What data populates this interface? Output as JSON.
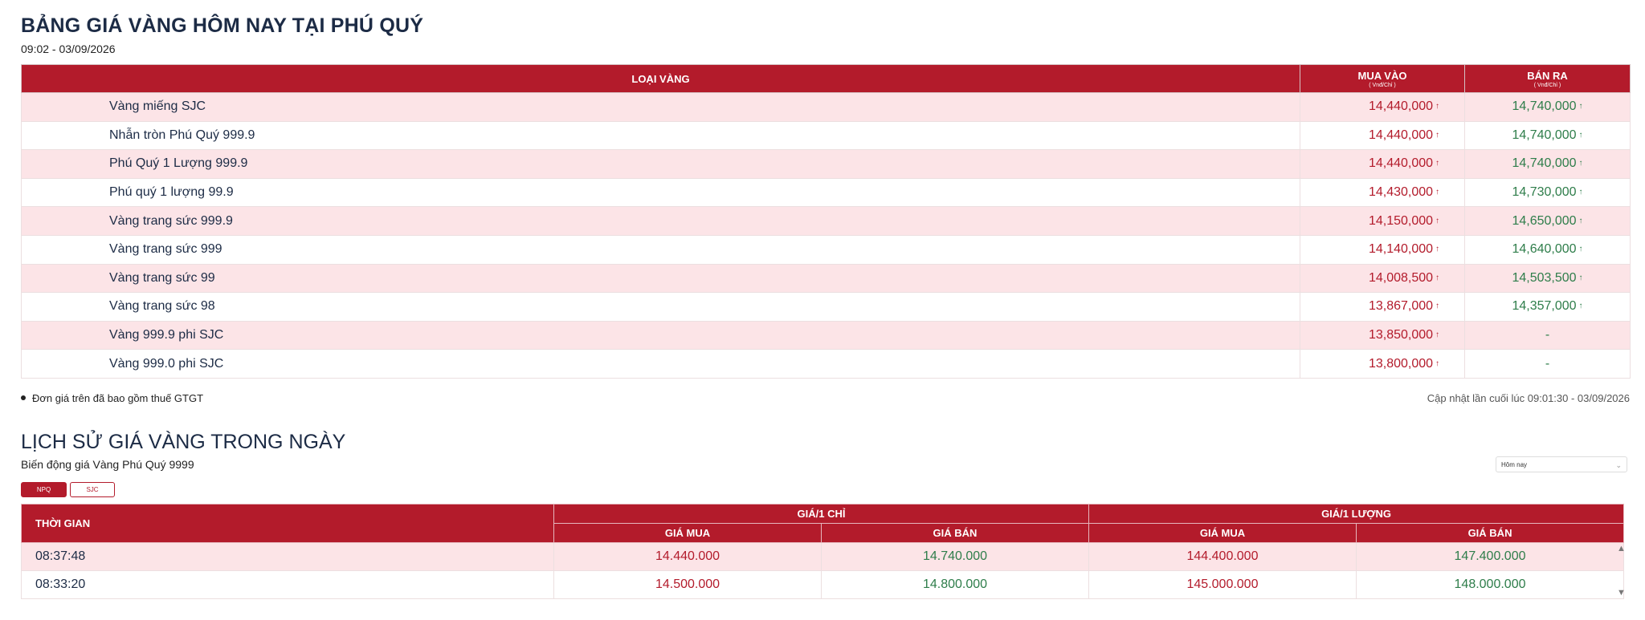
{
  "header": {
    "title": "BẢNG GIÁ VÀNG HÔM NAY TẠI PHÚ QUÝ",
    "datetime": "09:02 - 03/09/2026"
  },
  "price_table": {
    "col_type": "LOẠI VÀNG",
    "col_buy": "MUA VÀO",
    "col_buy_unit": "( Vnđ/Chỉ )",
    "col_sell": "BÁN RA",
    "col_sell_unit": "( Vnđ/Chỉ )",
    "up_arrow": "↑",
    "rows": [
      {
        "name": "Vàng miếng SJC",
        "buy": "14,440,000",
        "sell": "14,740,000"
      },
      {
        "name": "Nhẫn tròn Phú Quý 999.9",
        "buy": "14,440,000",
        "sell": "14,740,000"
      },
      {
        "name": "Phú Quý 1 Lượng 999.9",
        "buy": "14,440,000",
        "sell": "14,740,000"
      },
      {
        "name": "Phú quý 1 lượng 99.9",
        "buy": "14,430,000",
        "sell": "14,730,000"
      },
      {
        "name": "Vàng trang sức 999.9",
        "buy": "14,150,000",
        "sell": "14,650,000"
      },
      {
        "name": "Vàng trang sức 999",
        "buy": "14,140,000",
        "sell": "14,640,000"
      },
      {
        "name": "Vàng trang sức 99",
        "buy": "14,008,500",
        "sell": "14,503,500"
      },
      {
        "name": "Vàng trang sức 98",
        "buy": "13,867,000",
        "sell": "14,357,000"
      },
      {
        "name": "Vàng 999.9 phi SJC",
        "buy": "13,850,000",
        "sell": "-"
      },
      {
        "name": "Vàng 999.0 phi SJC",
        "buy": "13,800,000",
        "sell": "-"
      }
    ]
  },
  "notes": {
    "vat": "Đơn giá trên đã bao gồm thuế GTGT",
    "updated": "Cập nhật lần cuối lúc 09:01:30 - 03/09/2026"
  },
  "history": {
    "title": "LỊCH SỬ GIÁ VÀNG TRONG NGÀY",
    "subtitle": "Biến động giá Vàng Phú Quý 9999",
    "buttons": {
      "npq": "NPQ",
      "sjc": "SJC"
    },
    "range_select": "Hôm nay",
    "col_time": "THỜI GIAN",
    "group_chi": "GIÁ/1 CHỈ",
    "group_luong": "GIÁ/1 LƯỢNG",
    "col_buy": "GIÁ MUA",
    "col_sell": "GIÁ BÁN",
    "rows": [
      {
        "time": "08:37:48",
        "chi_buy": "14.440.000",
        "chi_sell": "14.740.000",
        "luong_buy": "144.400.000",
        "luong_sell": "147.400.000"
      },
      {
        "time": "08:33:20",
        "chi_buy": "14.500.000",
        "chi_sell": "14.800.000",
        "luong_buy": "145.000.000",
        "luong_sell": "148.000.000"
      }
    ]
  },
  "colors": {
    "brand_red": "#b31b2b",
    "row_pink": "#fce4e7",
    "sell_green": "#2e7d4a"
  }
}
